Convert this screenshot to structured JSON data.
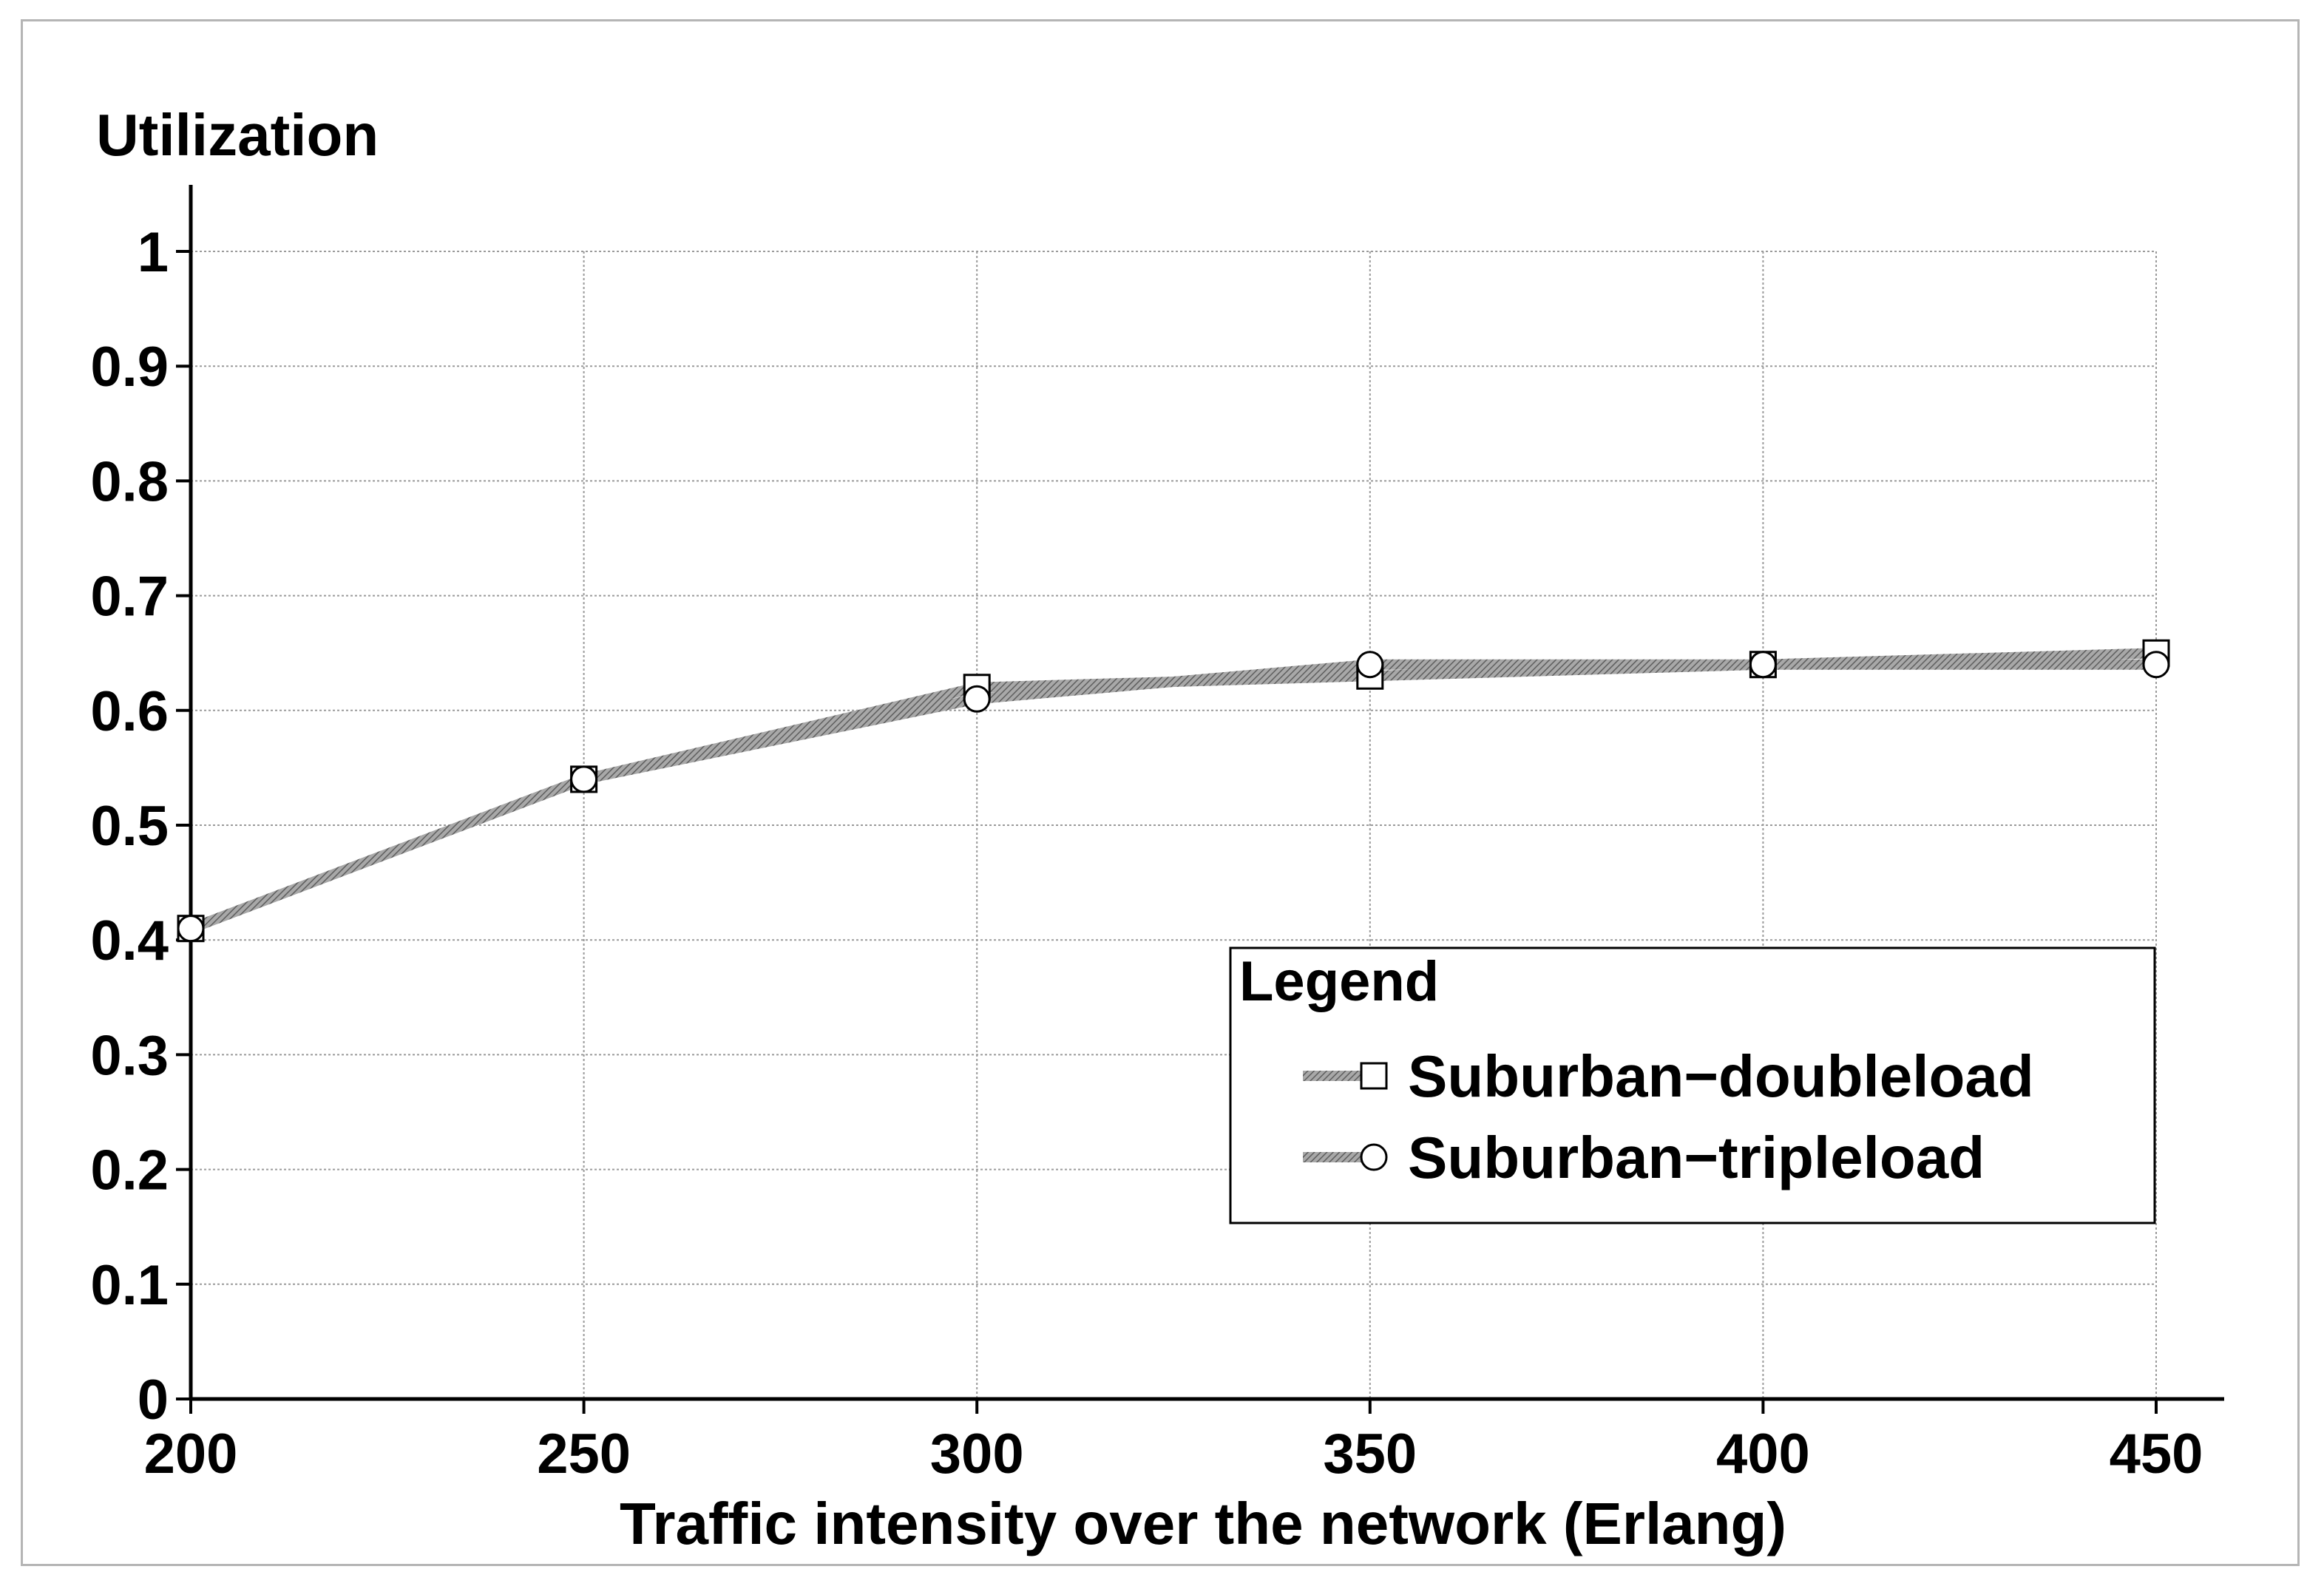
{
  "chart_data": {
    "type": "line",
    "title": "",
    "ylabel": "Utilization",
    "xlabel": "Traffic intensity over the network (Erlang)",
    "x": [
      200,
      250,
      300,
      350,
      400,
      450
    ],
    "xlim": [
      200,
      450
    ],
    "ylim": [
      0,
      1
    ],
    "x_ticks": [
      "200",
      "250",
      "300",
      "350",
      "400",
      "450"
    ],
    "y_ticks": [
      "0",
      "0.1",
      "0.2",
      "0.3",
      "0.4",
      "0.5",
      "0.6",
      "0.7",
      "0.8",
      "0.9",
      "1"
    ],
    "grid": true,
    "legend": {
      "title": "Legend",
      "placement": "lower-right"
    },
    "series": [
      {
        "name": "Suburban−doubleload",
        "marker": "square",
        "values": [
          0.41,
          0.54,
          0.62,
          0.63,
          0.64,
          0.65
        ]
      },
      {
        "name": "Suburban−tripleload",
        "marker": "circle",
        "values": [
          0.41,
          0.54,
          0.61,
          0.64,
          0.64,
          0.64
        ]
      }
    ],
    "colors": {
      "line": "#8c8c8c",
      "axis": "#000000",
      "grid": "#9a9a9a",
      "frame": "#b5b5b5"
    }
  }
}
